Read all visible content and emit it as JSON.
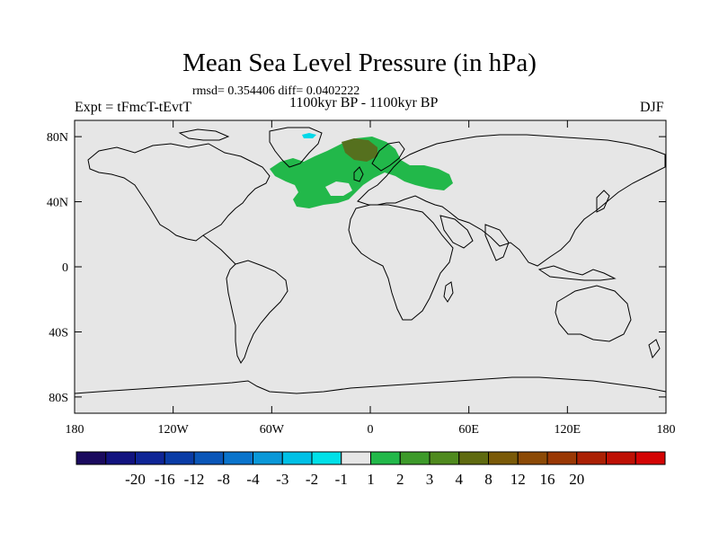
{
  "title": "Mean Sea Level Pressure (in hPa)",
  "stats": "rmsd= 0.354406 diff= 0.0402222",
  "period": "1100kyr BP - 1100kyr BP",
  "experiment": "Expt = tFmcT-tEvtT",
  "season": "DJF",
  "colors": {
    "ocean_background": "#e6e6e6",
    "coastline": "#000000",
    "anomaly_light_green": "#22b84a",
    "anomaly_olive": "#55701e",
    "anomaly_cyan": "#00d8e8"
  },
  "map": {
    "lon_ticks": [
      {
        "lon": -180,
        "label": "180"
      },
      {
        "lon": -120,
        "label": "120W"
      },
      {
        "lon": -60,
        "label": "60W"
      },
      {
        "lon": 0,
        "label": "0"
      },
      {
        "lon": 60,
        "label": "60E"
      },
      {
        "lon": 120,
        "label": "120E"
      },
      {
        "lon": 180,
        "label": "180"
      }
    ],
    "lat_ticks": [
      {
        "lat": 80,
        "label": "80N"
      },
      {
        "lat": 40,
        "label": "40N"
      },
      {
        "lat": 0,
        "label": "0"
      },
      {
        "lat": -40,
        "label": "40S"
      },
      {
        "lat": -80,
        "label": "80S"
      }
    ],
    "lon_range": [
      -180,
      180
    ],
    "lat_range": [
      -90,
      90
    ]
  },
  "colorbar": {
    "colors": [
      "#1a0a5e",
      "#12137f",
      "#0f2596",
      "#0a3ca6",
      "#0a56b8",
      "#0a74cc",
      "#0a98d8",
      "#00c0e6",
      "#00e0e8",
      "#e6e6e6",
      "#22b84a",
      "#3d9a2a",
      "#4f8a1e",
      "#5f6a10",
      "#7a5a08",
      "#8c4a06",
      "#9a3804",
      "#ab2004",
      "#be1004",
      "#d40404"
    ],
    "labels": [
      "-20",
      "-16",
      "-12",
      "-8",
      "-4",
      "-3",
      "-2",
      "-1",
      "1",
      "2",
      "3",
      "4",
      "8",
      "12",
      "16",
      "20"
    ]
  },
  "chart_data": {
    "type": "map",
    "title": "Mean Sea Level Pressure (in hPa)",
    "variable": "Mean Sea Level Pressure anomaly (hPa)",
    "season": "DJF",
    "rmsd": 0.354406,
    "diff": 0.0402222,
    "contour_levels": [
      -20,
      -16,
      -12,
      -8,
      -4,
      -3,
      -2,
      -1,
      1,
      2,
      3,
      4,
      8,
      12,
      16,
      20
    ],
    "anomaly_regions": [
      {
        "region": "North Atlantic / Europe",
        "range_hPa": [
          1,
          2
        ]
      },
      {
        "region": "Scandinavia / Barents Sea",
        "range_hPa": [
          3,
          4
        ]
      },
      {
        "region": "Greenland (small)",
        "range_hPa": [
          -2,
          -1
        ]
      }
    ]
  }
}
